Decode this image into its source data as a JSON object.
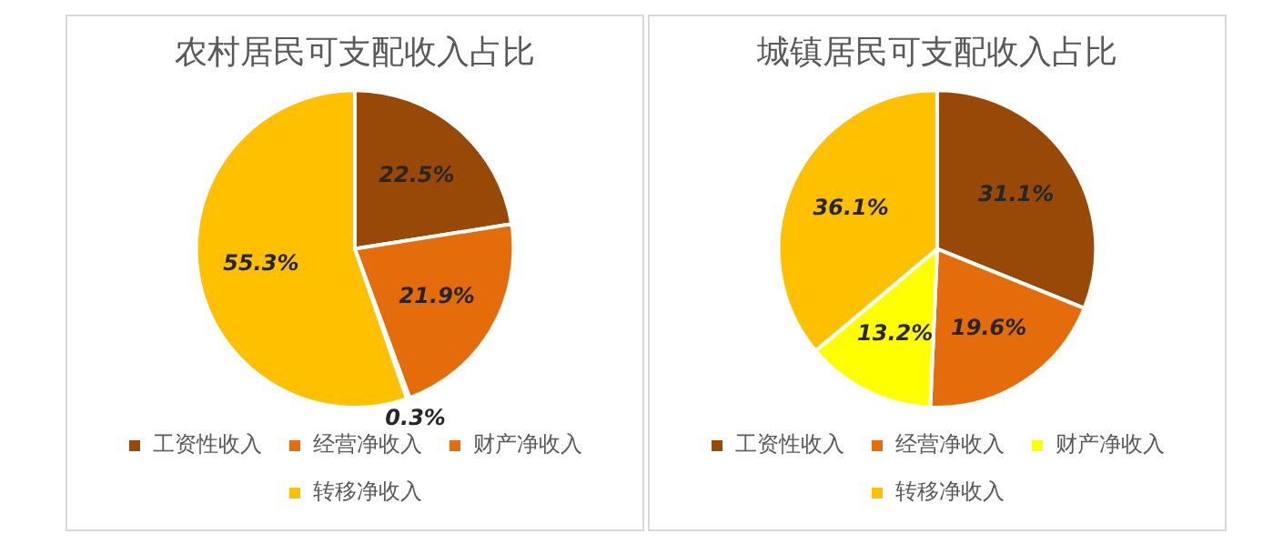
{
  "chart_data": [
    {
      "type": "pie",
      "title": "农村居民可支配收入占比",
      "categories": [
        "工资性收入",
        "经营净收入",
        "财产净收入",
        "转移净收入"
      ],
      "values": [
        22.5,
        21.9,
        0.3,
        55.3
      ],
      "value_labels": [
        "22.5%",
        "21.9%",
        "0.3%",
        "55.3%"
      ],
      "colors": [
        "#984807",
        "#e46c0a",
        "#e46c0a",
        "#ffc000"
      ],
      "legend": "bottom"
    },
    {
      "type": "pie",
      "title": "城镇居民可支配收入占比",
      "categories": [
        "工资性收入",
        "经营净收入",
        "财产净收入",
        "转移净收入"
      ],
      "values": [
        31.1,
        19.6,
        13.2,
        36.1
      ],
      "value_labels": [
        "31.1%",
        "19.6%",
        "13.2%",
        "36.1%"
      ],
      "colors": [
        "#984807",
        "#e46c0a",
        "#ffff00",
        "#ffc000"
      ],
      "legend": "bottom"
    }
  ]
}
